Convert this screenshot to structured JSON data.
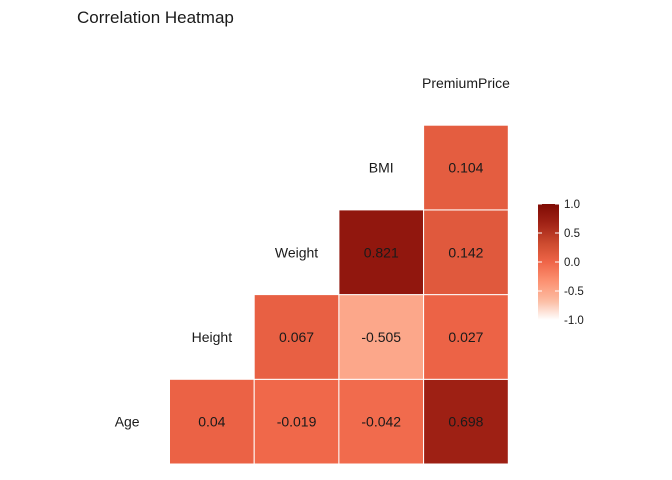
{
  "chart_data": {
    "type": "heatmap",
    "title": "Correlation Heatmap",
    "variables": [
      "Age",
      "Height",
      "Weight",
      "BMI",
      "PremiumPrice"
    ],
    "cells": [
      {
        "row": "Age",
        "col": "Height",
        "value": 0.04,
        "label": "0.04"
      },
      {
        "row": "Age",
        "col": "Weight",
        "value": -0.019,
        "label": "-0.019"
      },
      {
        "row": "Age",
        "col": "BMI",
        "value": -0.042,
        "label": "-0.042"
      },
      {
        "row": "Age",
        "col": "PremiumPrice",
        "value": 0.698,
        "label": "0.698"
      },
      {
        "row": "Height",
        "col": "Weight",
        "value": 0.067,
        "label": "0.067"
      },
      {
        "row": "Height",
        "col": "BMI",
        "value": -0.505,
        "label": "-0.505"
      },
      {
        "row": "Height",
        "col": "PremiumPrice",
        "value": 0.027,
        "label": "0.027"
      },
      {
        "row": "Weight",
        "col": "BMI",
        "value": 0.821,
        "label": "0.821"
      },
      {
        "row": "Weight",
        "col": "PremiumPrice",
        "value": 0.142,
        "label": "0.142"
      },
      {
        "row": "BMI",
        "col": "PremiumPrice",
        "value": 0.104,
        "label": "0.104"
      }
    ],
    "color_scale": {
      "min": -1,
      "max": 1,
      "colors": [
        "#ffffff",
        "#fcbba1",
        "#fc9272",
        "#ef6548",
        "#cb4a2e",
        "#a12216",
        "#7f0b04"
      ]
    },
    "legend": {
      "position": "right",
      "ticks": [
        "1.0",
        "0.5",
        "0.0",
        "-0.5",
        "-1.0"
      ],
      "tick_values": [
        1.0,
        0.5,
        0.0,
        -0.5,
        -1.0
      ]
    }
  }
}
